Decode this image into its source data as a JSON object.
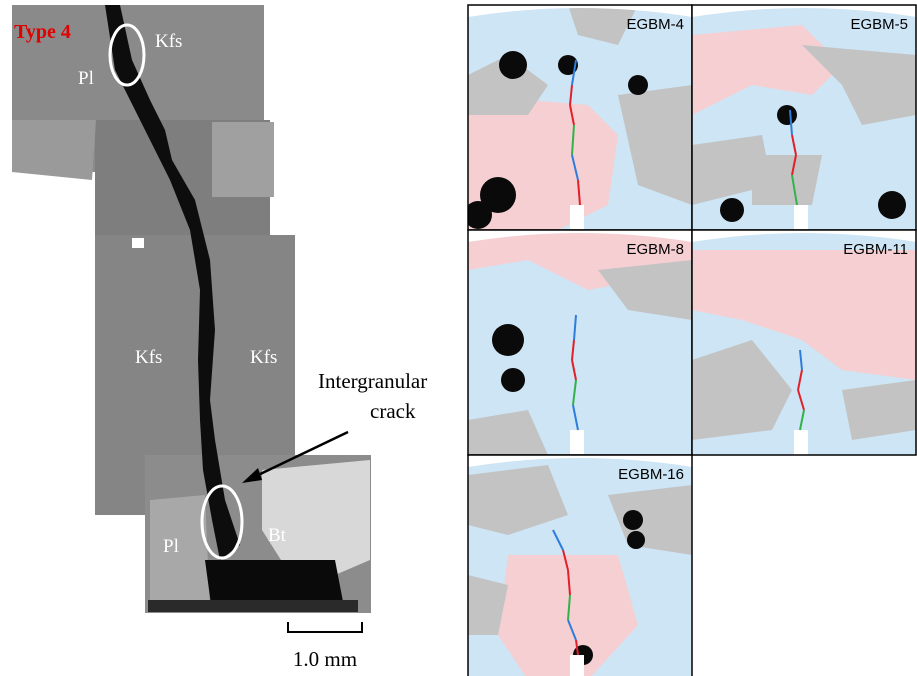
{
  "left_image": {
    "type_label": "Type 4",
    "mineral_labels": [
      "Kfs",
      "Pl",
      "Kfs",
      "Kfs",
      "Pl",
      "Bt"
    ],
    "annotation": [
      "Intergranular",
      "crack"
    ],
    "scale_bar": "1.0 mm"
  },
  "panels": [
    {
      "label": "EGBM-4"
    },
    {
      "label": "EGBM-5"
    },
    {
      "label": "EGBM-8"
    },
    {
      "label": "EGBM-11"
    },
    {
      "label": "EGBM-16"
    }
  ]
}
